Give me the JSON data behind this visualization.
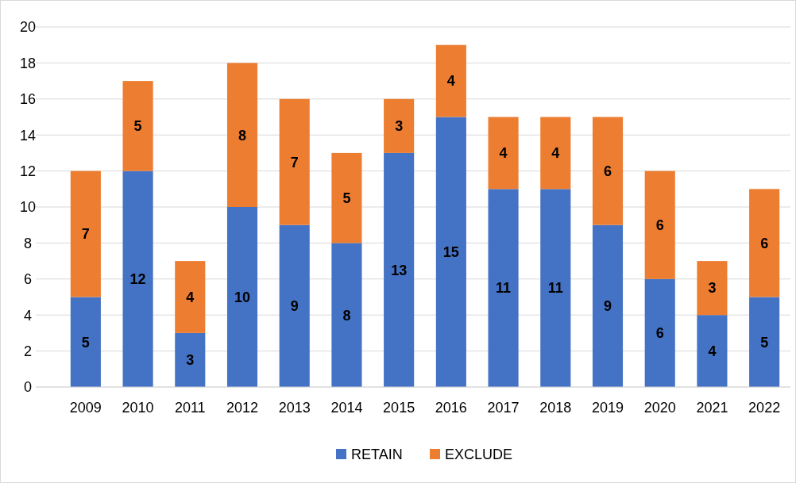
{
  "chart_data": {
    "type": "bar",
    "stacked": true,
    "categories": [
      "2009",
      "2010",
      "2011",
      "2012",
      "2013",
      "2014",
      "2015",
      "2016",
      "2017",
      "2018",
      "2019",
      "2020",
      "2021",
      "2022"
    ],
    "series": [
      {
        "name": "RETAIN",
        "color": "#4472c4",
        "values": [
          5,
          12,
          3,
          10,
          9,
          8,
          13,
          15,
          11,
          11,
          9,
          6,
          4,
          5
        ]
      },
      {
        "name": "EXCLUDE",
        "color": "#ed7d31",
        "values": [
          7,
          5,
          4,
          8,
          7,
          5,
          3,
          4,
          4,
          4,
          6,
          6,
          3,
          6
        ]
      }
    ],
    "ylim": [
      0,
      20
    ],
    "yticks": [
      0,
      2,
      4,
      6,
      8,
      10,
      12,
      14,
      16,
      18,
      20
    ],
    "grid": "y",
    "legend": "bottom",
    "data_labels": true
  }
}
